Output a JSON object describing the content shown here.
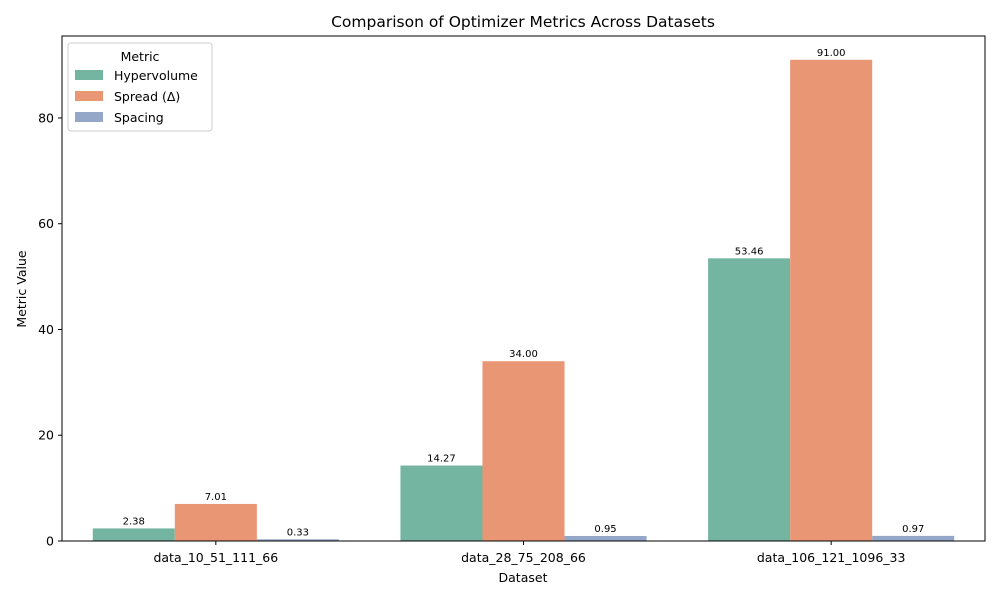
{
  "chart_data": {
    "type": "bar",
    "title": "Comparison of Optimizer Metrics Across Datasets",
    "xlabel": "Dataset",
    "ylabel": "Metric Value",
    "categories": [
      "data_10_51_111_66",
      "data_28_75_208_66",
      "data_106_121_1096_33"
    ],
    "series": [
      {
        "name": "Hypervolume",
        "color": "#73b5a0",
        "values": [
          2.38,
          14.27,
          53.46
        ],
        "labels": [
          "2.38",
          "14.27",
          "53.46"
        ]
      },
      {
        "name": "Spread (Δ)",
        "color": "#e99674",
        "values": [
          7.01,
          34.0,
          91.0
        ],
        "labels": [
          "7.01",
          "34.00",
          "91.00"
        ]
      },
      {
        "name": "Spacing",
        "color": "#95a7c8",
        "values": [
          0.33,
          0.95,
          0.97
        ],
        "labels": [
          "0.33",
          "0.95",
          "0.97"
        ]
      }
    ],
    "ylim": [
      0,
      95.5
    ],
    "yticks": [
      0,
      20,
      40,
      60,
      80
    ],
    "ytick_labels": [
      "0",
      "20",
      "40",
      "60",
      "80"
    ],
    "legend": {
      "title": "Metric",
      "placement": "top-left"
    },
    "grid": false
  }
}
